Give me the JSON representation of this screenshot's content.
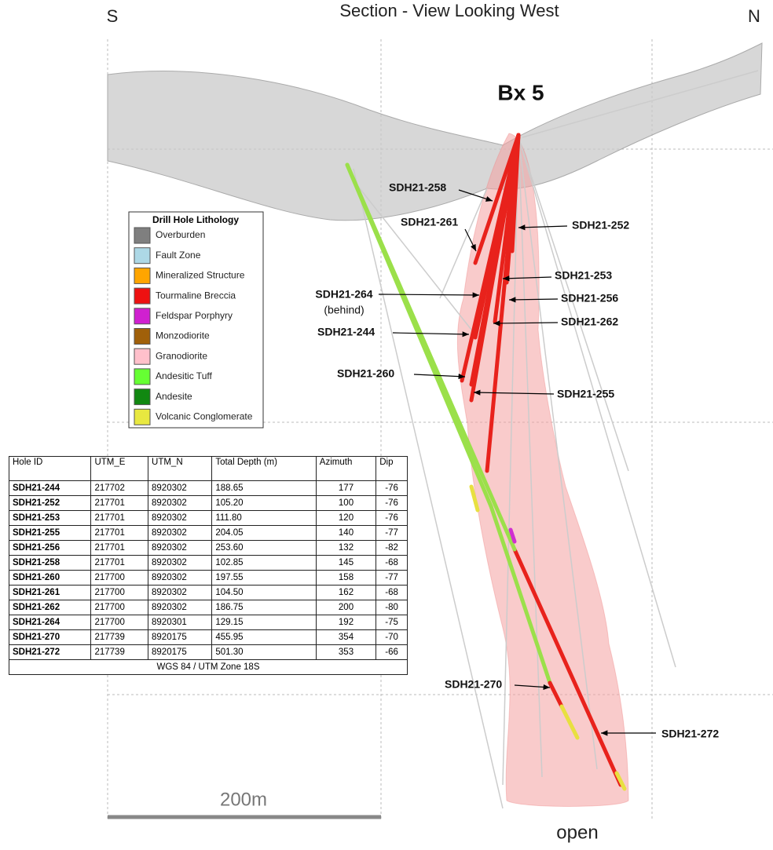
{
  "header": {
    "title": "Section - View Looking West",
    "left": "S",
    "right": "N"
  },
  "target": "Bx 5",
  "legend": {
    "title": "Drill Hole Lithology",
    "items": [
      {
        "label": "Overburden",
        "color": "#7f7f7f"
      },
      {
        "label": "Fault Zone",
        "color": "#add8e6"
      },
      {
        "label": "Mineralized Structure",
        "color": "#ffa500"
      },
      {
        "label": "Tourmaline Breccia",
        "color": "#ee1111"
      },
      {
        "label": "Feldspar Porphyry",
        "color": "#d020d0"
      },
      {
        "label": "Monzodiorite",
        "color": "#a0600a"
      },
      {
        "label": "Granodiorite",
        "color": "#ffc0cb"
      },
      {
        "label": "Andesitic Tuff",
        "color": "#66ff33"
      },
      {
        "label": "Andesite",
        "color": "#118811"
      },
      {
        "label": "Volcanic Conglomerate",
        "color": "#e8e840"
      }
    ]
  },
  "callouts": [
    {
      "label": "SDH21-258"
    },
    {
      "label": "SDH21-261"
    },
    {
      "label": "SDH21-252"
    },
    {
      "label": "SDH21-253"
    },
    {
      "label": "SDH21-264",
      "note": "(behind)"
    },
    {
      "label": "SDH21-256"
    },
    {
      "label": "SDH21-244"
    },
    {
      "label": "SDH21-262"
    },
    {
      "label": "SDH21-260"
    },
    {
      "label": "SDH21-255"
    },
    {
      "label": "SDH21-270"
    },
    {
      "label": "SDH21-272"
    }
  ],
  "table": {
    "header": [
      "Hole ID",
      "UTM_E",
      "UTM_N",
      "Total Depth (m)",
      "Azimuth",
      "Dip"
    ],
    "rows": [
      [
        "SDH21-244",
        "217702",
        "8920302",
        "188.65",
        "177",
        "-76"
      ],
      [
        "SDH21-252",
        "217701",
        "8920302",
        "105.20",
        "100",
        "-76"
      ],
      [
        "SDH21-253",
        "217701",
        "8920302",
        "111.80",
        "120",
        "-76"
      ],
      [
        "SDH21-255",
        "217701",
        "8920302",
        "204.05",
        "140",
        "-77"
      ],
      [
        "SDH21-256",
        "217701",
        "8920302",
        "253.60",
        "132",
        "-82"
      ],
      [
        "SDH21-258",
        "217701",
        "8920302",
        "102.85",
        "145",
        "-68"
      ],
      [
        "SDH21-260",
        "217700",
        "8920302",
        "197.55",
        "158",
        "-77"
      ],
      [
        "SDH21-261",
        "217700",
        "8920302",
        "104.50",
        "162",
        "-68"
      ],
      [
        "SDH21-262",
        "217700",
        "8920302",
        "186.75",
        "200",
        "-80"
      ],
      [
        "SDH21-264",
        "217700",
        "8920301",
        "129.15",
        "192",
        "-75"
      ],
      [
        "SDH21-270",
        "217739",
        "8920175",
        "455.95",
        "354",
        "-70"
      ],
      [
        "SDH21-272",
        "217739",
        "8920175",
        "501.30",
        "353",
        "-66"
      ]
    ],
    "footer": "WGS 84 / UTM Zone 18S"
  },
  "scale": {
    "label": "200m"
  },
  "open_label": "open"
}
